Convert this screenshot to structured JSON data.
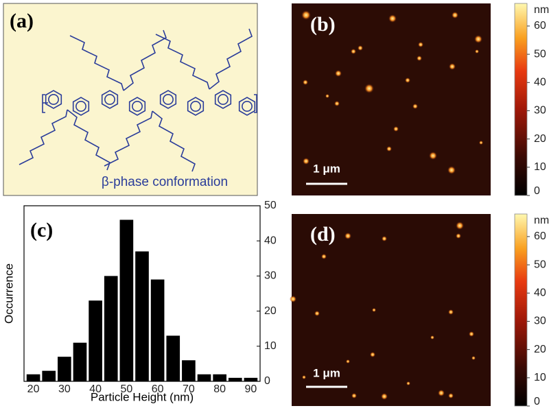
{
  "panel_a": {
    "label": "(a)",
    "caption": "β-phase conformation"
  },
  "panel_b": {
    "label": "(b)",
    "scale_bar": "1 μm",
    "colorbar": {
      "unit": "nm",
      "lim": [
        0,
        68
      ],
      "ticks": [
        0,
        10,
        20,
        30,
        40,
        50,
        60
      ]
    }
  },
  "panel_d": {
    "label": "(d)",
    "scale_bar": "1 μm",
    "colorbar": {
      "unit": "nm",
      "lim": [
        0,
        68
      ],
      "ticks": [
        0,
        10,
        20,
        30,
        40,
        50,
        60
      ]
    }
  },
  "chart_data": {
    "type": "histogram",
    "label": "(c)",
    "xlabel": "Particle Height (nm)",
    "ylabel": "Occurrence",
    "bins": [
      17.5,
      22.5,
      27.5,
      32.5,
      37.5,
      42.5,
      47.5,
      52.5,
      57.5,
      62.5,
      67.5,
      72.5,
      77.5,
      82.5,
      87.5,
      92.5
    ],
    "values": [
      2,
      3,
      7,
      11,
      23,
      30,
      46,
      37,
      29,
      13,
      6,
      2,
      2,
      1,
      1
    ],
    "color": "#000000",
    "xlim": [
      17,
      93
    ],
    "xticks": [
      20,
      30,
      40,
      50,
      60,
      70,
      80,
      90
    ],
    "ylim": [
      0,
      50
    ],
    "yticks": [
      0,
      10,
      20,
      30,
      40,
      50
    ],
    "y_axis_side": "right"
  }
}
